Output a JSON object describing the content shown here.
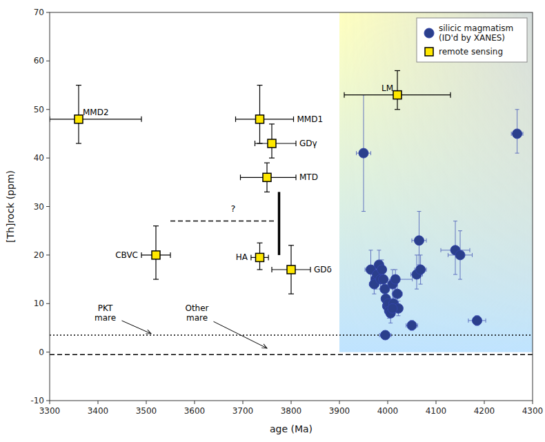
{
  "chart_data": {
    "type": "scatter",
    "xlabel": "age (Ma)",
    "ylabel": "[Th]rock (ppm)",
    "xlim": [
      3300,
      4300
    ],
    "ylim": [
      -10,
      70
    ],
    "xticks": [
      3300,
      3400,
      3500,
      3600,
      3700,
      3800,
      3900,
      4000,
      4100,
      4200,
      4300
    ],
    "yticks": [
      -10,
      0,
      10,
      20,
      30,
      40,
      50,
      60,
      70
    ],
    "grid": false,
    "legend": "upper right",
    "series": [
      {
        "name": "silicic magmatism\n(ID'd by XANES)",
        "marker": "circle",
        "color": "#2B3F8C",
        "x": [
          3950,
          3965,
          3975,
          3972,
          3978,
          3982,
          3985,
          3988,
          3991,
          3994,
          3996,
          3999,
          4001,
          4003,
          4006,
          4010,
          4012,
          4016,
          4020,
          4022,
          4010,
          4065,
          4060,
          4068,
          4140,
          4150,
          4050,
          4185,
          3995,
          4268
        ],
        "values": [
          41,
          17,
          15,
          14,
          16,
          18,
          15,
          17,
          15,
          13,
          11,
          9.5,
          10,
          8.5,
          8,
          14,
          10,
          15,
          12,
          9,
          9,
          23,
          16,
          17,
          21,
          20,
          5.5,
          6.5,
          3.5,
          45
        ],
        "xerr": [
          15,
          12,
          10,
          10,
          8,
          8,
          8,
          8,
          8,
          8,
          8,
          8,
          8,
          8,
          8,
          10,
          8,
          35,
          10,
          8,
          8,
          15,
          12,
          12,
          30,
          25,
          12,
          18,
          12,
          12
        ],
        "yerr_lo": [
          12,
          3,
          2,
          2,
          2,
          2,
          2,
          2,
          2,
          2,
          2,
          1.5,
          1.5,
          1.5,
          2,
          3,
          2,
          2,
          2,
          1.5,
          1.5,
          5,
          3,
          3,
          5,
          5,
          1,
          1,
          0.5,
          4
        ],
        "yerr_hi": [
          12,
          4,
          3,
          2,
          2,
          3,
          2,
          2,
          2,
          2,
          2,
          1.5,
          1.5,
          1.5,
          2,
          3,
          2,
          2,
          3,
          1.5,
          1.5,
          6,
          4,
          3,
          6,
          5,
          1,
          1,
          0.5,
          5
        ]
      },
      {
        "name": "remote sensing",
        "marker": "square",
        "color": "#FFE800",
        "labels": [
          "MMD2",
          "MMD1",
          "GDγ",
          "MTD",
          "HA",
          "GDδ",
          "LM",
          "CBVC"
        ],
        "x": [
          3360,
          3735,
          3760,
          3750,
          3735,
          3800,
          4020,
          3520
        ],
        "values": [
          48,
          48,
          43,
          36,
          19.5,
          17,
          53,
          20
        ],
        "xerr_lo": [
          60,
          50,
          35,
          55,
          18,
          40,
          110,
          30
        ],
        "xerr_hi": [
          130,
          70,
          50,
          60,
          18,
          40,
          110,
          30
        ],
        "yerr_lo": [
          5,
          5,
          3,
          3,
          2.5,
          5,
          3,
          5
        ],
        "yerr_hi": [
          7,
          7,
          4,
          3,
          3,
          5,
          5,
          6
        ]
      }
    ],
    "shaded_region": {
      "xmin": 3900,
      "xmax": 4300,
      "ymin": 0,
      "ymax": 70
    },
    "hlines": [
      {
        "y": 3.5,
        "line_style": "dotted"
      },
      {
        "y": -0.5,
        "line_style": "dashed"
      }
    ],
    "segments": [
      {
        "x": [
          3550,
          3770
        ],
        "y": [
          27,
          27
        ],
        "line_style": "dashed"
      },
      {
        "x": [
          3775,
          3775
        ],
        "y": [
          20,
          33
        ],
        "line_style": "solid"
      }
    ],
    "annotations": [
      {
        "text": "?",
        "text_x": 3680,
        "text_y": 28.5
      },
      {
        "text": "PKT\nmare",
        "x": 3510,
        "y": 3.8,
        "text_x": 3415,
        "text_y": 8.0
      },
      {
        "text": "Other\nmare",
        "x": 3750,
        "y": 0.8,
        "text_x": 3605,
        "text_y": 8.0
      }
    ]
  }
}
